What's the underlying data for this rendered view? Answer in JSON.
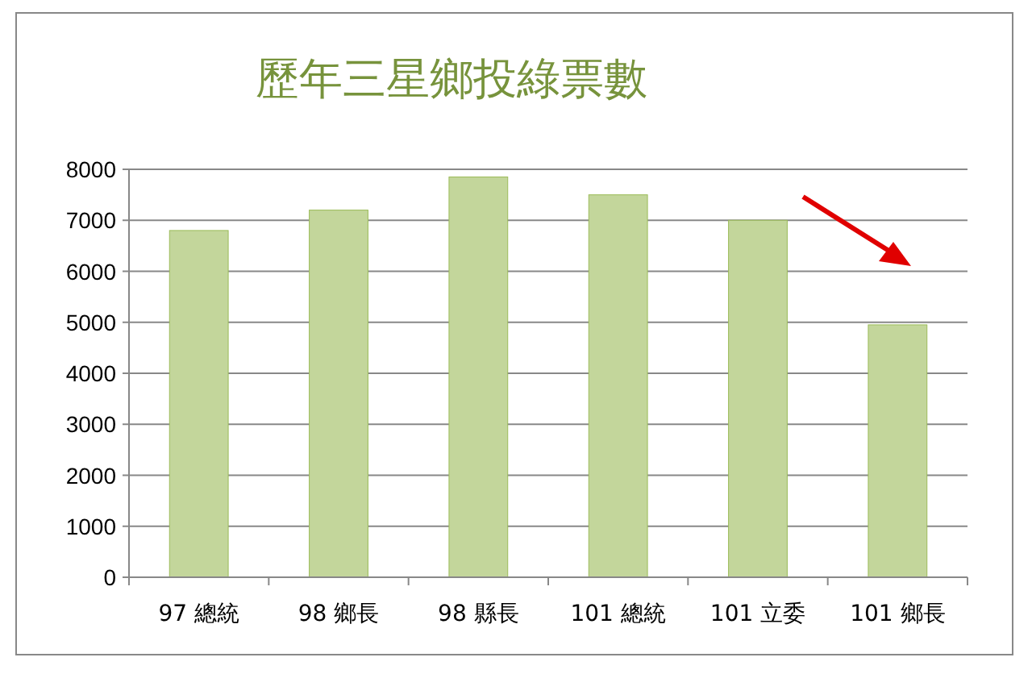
{
  "chart_data": {
    "type": "bar",
    "title": "歷年三星鄉投綠票數",
    "categories": [
      "97 總統",
      "98 鄉長",
      "98 縣長",
      "101 總統",
      "101 立委",
      "101 鄉長"
    ],
    "values": [
      6800,
      7200,
      7850,
      7500,
      7000,
      4950
    ],
    "color": "#c3d69b",
    "ylim": [
      0,
      8000
    ],
    "yticks": [
      0,
      1000,
      2000,
      3000,
      4000,
      5000,
      6000,
      7000,
      8000
    ],
    "grid": "y"
  }
}
